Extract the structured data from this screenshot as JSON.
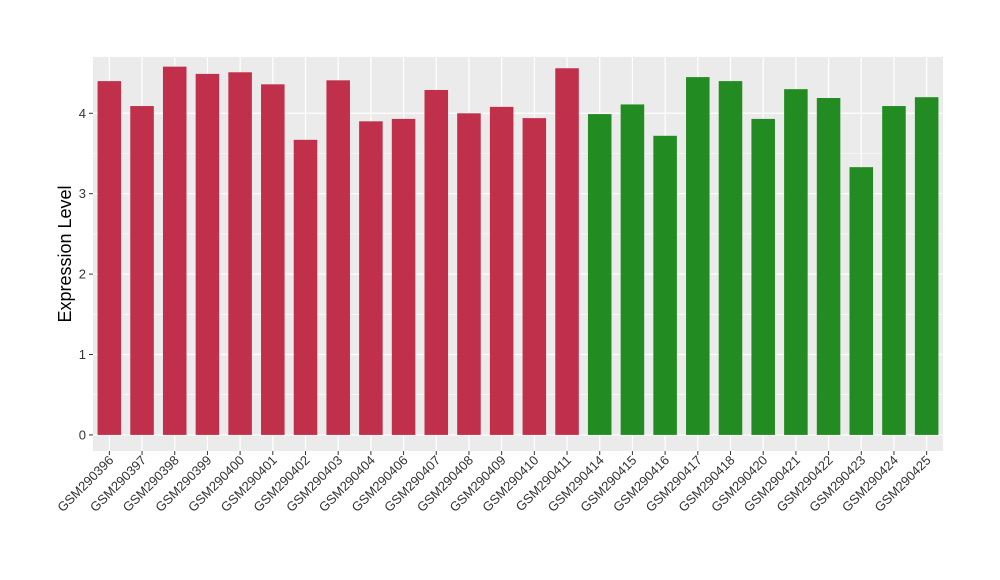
{
  "chart_data": {
    "type": "bar",
    "title": "",
    "xlabel": "",
    "ylabel": "Expression Level",
    "ylim": [
      -0.2,
      4.7
    ],
    "yticks": [
      0,
      1,
      2,
      3,
      4
    ],
    "grid": true,
    "legend": "none",
    "colors": {
      "group1": "#C0304A",
      "group2": "#228B22",
      "panel_bg": "#EBEBEB",
      "grid": "#FFFFFF"
    },
    "categories": [
      "GSM290396",
      "GSM290397",
      "GSM290398",
      "GSM290399",
      "GSM290400",
      "GSM290401",
      "GSM290402",
      "GSM290403",
      "GSM290404",
      "GSM290406",
      "GSM290407",
      "GSM290408",
      "GSM290409",
      "GSM290410",
      "GSM290411",
      "GSM290414",
      "GSM290415",
      "GSM290416",
      "GSM290417",
      "GSM290418",
      "GSM290420",
      "GSM290421",
      "GSM290422",
      "GSM290423",
      "GSM290424",
      "GSM290425"
    ],
    "values": [
      4.4,
      4.09,
      4.58,
      4.49,
      4.51,
      4.36,
      3.67,
      4.41,
      3.9,
      3.93,
      4.29,
      4.0,
      4.08,
      3.94,
      4.56,
      3.99,
      4.11,
      3.72,
      4.45,
      4.4,
      3.93,
      4.3,
      4.19,
      3.33,
      4.09,
      4.2
    ],
    "groups": [
      1,
      1,
      1,
      1,
      1,
      1,
      1,
      1,
      1,
      1,
      1,
      1,
      1,
      1,
      1,
      2,
      2,
      2,
      2,
      2,
      2,
      2,
      2,
      2,
      2,
      2
    ]
  }
}
